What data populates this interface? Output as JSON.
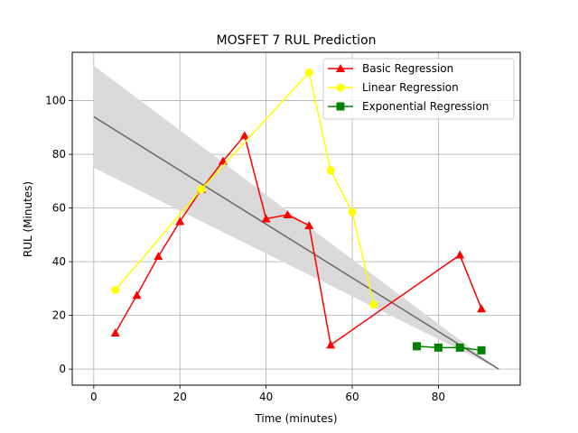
{
  "chart_data": {
    "type": "line",
    "title": "MOSFET 7 RUL Prediction",
    "xlabel": "Time (minutes)",
    "ylabel": "RUL (Minutes)",
    "xlim": [
      -5,
      99
    ],
    "ylim": [
      -6,
      118
    ],
    "xticks": [
      0,
      20,
      40,
      60,
      80
    ],
    "yticks": [
      0,
      20,
      40,
      60,
      80,
      100
    ],
    "grid": true,
    "legend_position": "top-right",
    "reference_line": {
      "x": [
        0,
        94
      ],
      "y": [
        94,
        0
      ],
      "color": "#666666"
    },
    "confidence_band": {
      "x": [
        0,
        94
      ],
      "upper": [
        113,
        0
      ],
      "lower": [
        75,
        0
      ],
      "color": "#d9d9d9"
    },
    "series": [
      {
        "name": "Basic Regression",
        "color": "#ff0000",
        "marker": "triangle",
        "x": [
          5,
          10,
          15,
          20,
          25,
          30,
          35,
          40,
          45,
          50,
          55,
          85,
          90
        ],
        "y": [
          13.5,
          27.5,
          42,
          55,
          67,
          77.5,
          87,
          56,
          57.5,
          53.5,
          9,
          42.5,
          22.5
        ]
      },
      {
        "name": "Linear Regression",
        "color": "#ffff00",
        "marker": "circle",
        "x": [
          5,
          25,
          50,
          55,
          60,
          65
        ],
        "y": [
          29.5,
          67,
          110.5,
          74,
          58.5,
          24
        ]
      },
      {
        "name": "Exponential Regression",
        "color": "#008000",
        "marker": "square",
        "x": [
          75,
          80,
          85,
          90
        ],
        "y": [
          8.5,
          8,
          8,
          7
        ]
      }
    ]
  }
}
